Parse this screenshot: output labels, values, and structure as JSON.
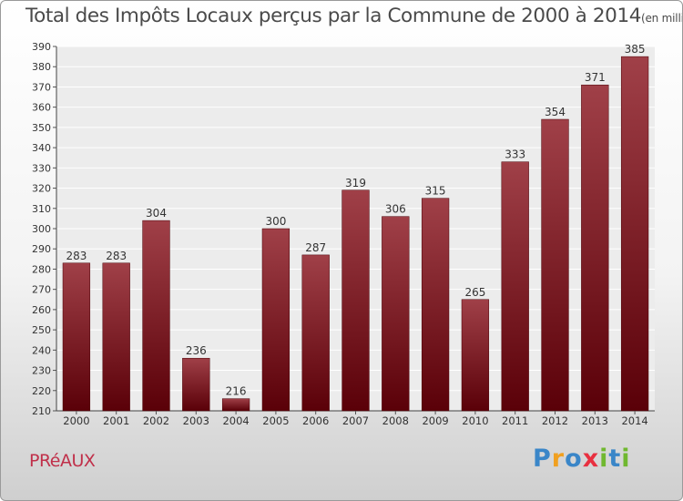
{
  "chart_data": {
    "type": "bar",
    "title": "Total des Impôts Locaux perçus par la Commune de 2000 à 2014",
    "unit_label": "(en milliers d'€)",
    "categories": [
      "2000",
      "2001",
      "2002",
      "2003",
      "2004",
      "2005",
      "2006",
      "2007",
      "2008",
      "2009",
      "2010",
      "2011",
      "2012",
      "2013",
      "2014"
    ],
    "values": [
      283,
      283,
      304,
      236,
      216,
      300,
      287,
      319,
      306,
      315,
      265,
      333,
      354,
      371,
      385
    ],
    "ylim": [
      210,
      390
    ],
    "ytick_step": 10,
    "xlabel": "",
    "ylabel": "",
    "grid": true,
    "bar_color": "#7a1a22",
    "bar_color_light": "#a04048"
  },
  "commune_name": "PRéAUX",
  "brand": {
    "name": "Proxiti",
    "letters": [
      "P",
      "r",
      "o",
      "x",
      "i",
      "t",
      "i"
    ],
    "colors": [
      "#3a86c8",
      "#f0a020",
      "#3a86c8",
      "#e83040",
      "#70b830",
      "#3a86c8",
      "#70b830"
    ]
  }
}
